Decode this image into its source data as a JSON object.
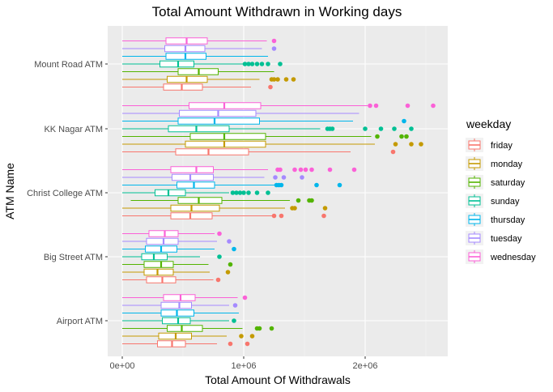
{
  "chart_data": {
    "type": "boxplot-horizontal",
    "title": "Total Amount Withdrawn in Working days",
    "xlabel": "Total Amount Of Withdrawals",
    "ylabel": "ATM Name",
    "xlim": [
      -120000,
      2680000
    ],
    "x_ticks": [
      {
        "value": 0,
        "label": "0e+00"
      },
      {
        "value": 1000000,
        "label": "1e+06"
      },
      {
        "value": 2000000,
        "label": "2e+06"
      }
    ],
    "categories": [
      "Mount Road ATM",
      "KK Nagar ATM",
      "Christ College ATM",
      "Big Street ATM",
      "Airport ATM"
    ],
    "legend": {
      "title": "weekday",
      "position": "right"
    },
    "grid": true,
    "series": [
      {
        "name": "friday",
        "color": "#F8766D"
      },
      {
        "name": "monday",
        "color": "#C49A00"
      },
      {
        "name": "saturday",
        "color": "#53B400"
      },
      {
        "name": "sunday",
        "color": "#00C094"
      },
      {
        "name": "thursday",
        "color": "#00B6EB"
      },
      {
        "name": "tuesday",
        "color": "#A58AFF"
      },
      {
        "name": "wednesday",
        "color": "#FB61D7"
      }
    ],
    "boxes": {
      "Mount Road ATM": {
        "friday": {
          "min": 0,
          "q1": 340000,
          "median": 490000,
          "q3": 660000,
          "max": 1060000,
          "outliers": [
            1220000
          ]
        },
        "monday": {
          "min": 0,
          "q1": 370000,
          "median": 530000,
          "q3": 700000,
          "max": 1130000,
          "outliers": [
            1230000,
            1250000,
            1280000,
            1350000,
            1410000
          ]
        },
        "saturday": {
          "min": 0,
          "q1": 460000,
          "median": 630000,
          "q3": 790000,
          "max": 1250000,
          "outliers": []
        },
        "sunday": {
          "min": 0,
          "q1": 310000,
          "median": 460000,
          "q3": 590000,
          "max": 1000000,
          "outliers": [
            1010000,
            1040000,
            1070000,
            1110000,
            1150000,
            1200000,
            1300000
          ]
        },
        "thursday": {
          "min": 0,
          "q1": 360000,
          "median": 520000,
          "q3": 690000,
          "max": 1200000,
          "outliers": []
        },
        "tuesday": {
          "min": 0,
          "q1": 350000,
          "median": 520000,
          "q3": 680000,
          "max": 1150000,
          "outliers": [
            1250000
          ]
        },
        "wednesday": {
          "min": 0,
          "q1": 360000,
          "median": 530000,
          "q3": 700000,
          "max": 1190000,
          "outliers": [
            1250000
          ]
        }
      },
      "KK Nagar ATM": {
        "friday": {
          "min": 0,
          "q1": 440000,
          "median": 710000,
          "q3": 1040000,
          "max": 1880000,
          "outliers": [
            2230000
          ]
        },
        "monday": {
          "min": 0,
          "q1": 520000,
          "median": 840000,
          "q3": 1180000,
          "max": 2080000,
          "outliers": [
            2250000,
            2380000,
            2460000
          ]
        },
        "saturday": {
          "min": 0,
          "q1": 560000,
          "median": 840000,
          "q3": 1180000,
          "max": 2050000,
          "outliers": [
            2100000,
            2300000,
            2340000
          ]
        },
        "sunday": {
          "min": 0,
          "q1": 380000,
          "median": 610000,
          "q3": 880000,
          "max": 1630000,
          "outliers": [
            1690000,
            1710000,
            1730000,
            2000000,
            2130000,
            2240000,
            2380000
          ]
        },
        "thursday": {
          "min": 0,
          "q1": 460000,
          "median": 760000,
          "q3": 1130000,
          "max": 1900000,
          "outliers": [
            2320000
          ]
        },
        "tuesday": {
          "min": 0,
          "q1": 470000,
          "median": 790000,
          "q3": 1100000,
          "max": 1950000,
          "outliers": []
        },
        "wednesday": {
          "min": 0,
          "q1": 550000,
          "median": 840000,
          "q3": 1140000,
          "max": 2020000,
          "outliers": [
            2040000,
            2090000,
            2350000,
            2560000
          ]
        }
      },
      "Christ College ATM": {
        "friday": {
          "min": 0,
          "q1": 400000,
          "median": 560000,
          "q3": 740000,
          "max": 1240000,
          "outliers": [
            1250000,
            1310000,
            1660000
          ]
        },
        "monday": {
          "min": 0,
          "q1": 400000,
          "median": 570000,
          "q3": 800000,
          "max": 1340000,
          "outliers": [
            1400000,
            1420000,
            1670000
          ]
        },
        "saturday": {
          "min": 70000,
          "q1": 460000,
          "median": 630000,
          "q3": 820000,
          "max": 1380000,
          "outliers": [
            1450000,
            1540000,
            1560000
          ]
        },
        "sunday": {
          "min": 0,
          "q1": 270000,
          "median": 380000,
          "q3": 520000,
          "max": 880000,
          "outliers": [
            910000,
            940000,
            970000,
            1000000,
            1040000,
            1110000,
            1200000
          ]
        },
        "thursday": {
          "min": 0,
          "q1": 450000,
          "median": 590000,
          "q3": 760000,
          "max": 1270000,
          "outliers": [
            1270000,
            1290000,
            1310000,
            1600000,
            1790000
          ]
        },
        "tuesday": {
          "min": 0,
          "q1": 410000,
          "median": 560000,
          "q3": 750000,
          "max": 1170000,
          "outliers": [
            1260000,
            1330000,
            1480000
          ]
        },
        "wednesday": {
          "min": 0,
          "q1": 400000,
          "median": 610000,
          "q3": 750000,
          "max": 1200000,
          "outliers": [
            1280000,
            1300000,
            1420000,
            1470000,
            1510000,
            1560000,
            1710000,
            1910000
          ]
        }
      },
      "Big Street ATM": {
        "friday": {
          "min": 0,
          "q1": 200000,
          "median": 330000,
          "q3": 440000,
          "max": 750000,
          "outliers": [
            790000
          ]
        },
        "monday": {
          "min": 0,
          "q1": 180000,
          "median": 290000,
          "q3": 420000,
          "max": 720000,
          "outliers": [
            870000
          ]
        },
        "saturday": {
          "min": 0,
          "q1": 180000,
          "median": 320000,
          "q3": 420000,
          "max": 710000,
          "outliers": [
            890000
          ]
        },
        "sunday": {
          "min": 0,
          "q1": 160000,
          "median": 260000,
          "q3": 370000,
          "max": 640000,
          "outliers": [
            800000
          ]
        },
        "thursday": {
          "min": 0,
          "q1": 190000,
          "median": 320000,
          "q3": 450000,
          "max": 760000,
          "outliers": [
            920000
          ]
        },
        "tuesday": {
          "min": 0,
          "q1": 200000,
          "median": 340000,
          "q3": 460000,
          "max": 780000,
          "outliers": [
            880000
          ]
        },
        "wednesday": {
          "min": 0,
          "q1": 220000,
          "median": 350000,
          "q3": 460000,
          "max": 760000,
          "outliers": [
            800000
          ]
        }
      },
      "Airport ATM": {
        "friday": {
          "min": 0,
          "q1": 290000,
          "median": 410000,
          "q3": 520000,
          "max": 780000,
          "outliers": [
            890000,
            1030000
          ]
        },
        "monday": {
          "min": 0,
          "q1": 300000,
          "median": 440000,
          "q3": 570000,
          "max": 860000,
          "outliers": [
            980000,
            1070000
          ]
        },
        "saturday": {
          "min": 0,
          "q1": 370000,
          "median": 490000,
          "q3": 660000,
          "max": 990000,
          "outliers": [
            1110000,
            1130000,
            1230000
          ]
        },
        "sunday": {
          "min": 0,
          "q1": 330000,
          "median": 460000,
          "q3": 560000,
          "max": 880000,
          "outliers": [
            920000
          ]
        },
        "thursday": {
          "min": 0,
          "q1": 320000,
          "median": 450000,
          "q3": 590000,
          "max": 960000,
          "outliers": []
        },
        "tuesday": {
          "min": 0,
          "q1": 320000,
          "median": 470000,
          "q3": 570000,
          "max": 880000,
          "outliers": [
            930000
          ]
        },
        "wednesday": {
          "min": 0,
          "q1": 340000,
          "median": 480000,
          "q3": 600000,
          "max": 950000,
          "outliers": [
            1010000
          ]
        }
      }
    }
  }
}
